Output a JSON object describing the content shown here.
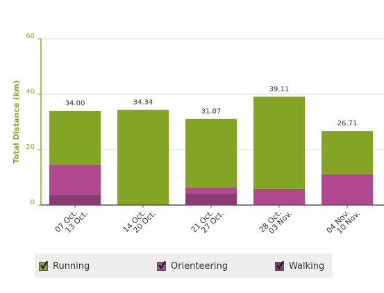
{
  "chart_data": {
    "type": "bar",
    "stacked": true,
    "ylabel": "Total Distance (km)",
    "ylim": [
      0,
      60
    ],
    "yticks": [
      0,
      20,
      40,
      60
    ],
    "grid": true,
    "categories": [
      [
        "07 Oct.",
        "13 Oct."
      ],
      [
        "14 Oct.",
        "20 Oct."
      ],
      [
        "21 Oct.",
        "27 Oct."
      ],
      [
        "28 Oct.",
        "03 Nov."
      ],
      [
        "04 Nov.",
        "10 Nov."
      ]
    ],
    "totals": [
      "34.00",
      "34.34",
      "31.07",
      "39.11",
      "26.71"
    ],
    "series": [
      {
        "name": "Walking",
        "color": "#8a3a75",
        "values": [
          3.8,
          0,
          4.2,
          0,
          0
        ]
      },
      {
        "name": "Orienteering",
        "color": "#b0488f",
        "values": [
          10.7,
          0,
          2.2,
          5.8,
          11.0
        ]
      },
      {
        "name": "Running",
        "color": "#84a523",
        "values": [
          19.5,
          34.34,
          24.67,
          33.31,
          15.71
        ]
      }
    ],
    "legend_placement": "bottom"
  },
  "legend": {
    "items": [
      {
        "label": "Running",
        "color": "#84a523"
      },
      {
        "label": "Orienteering",
        "color": "#b0488f"
      },
      {
        "label": "Walking",
        "color": "#8a3a75"
      }
    ]
  }
}
